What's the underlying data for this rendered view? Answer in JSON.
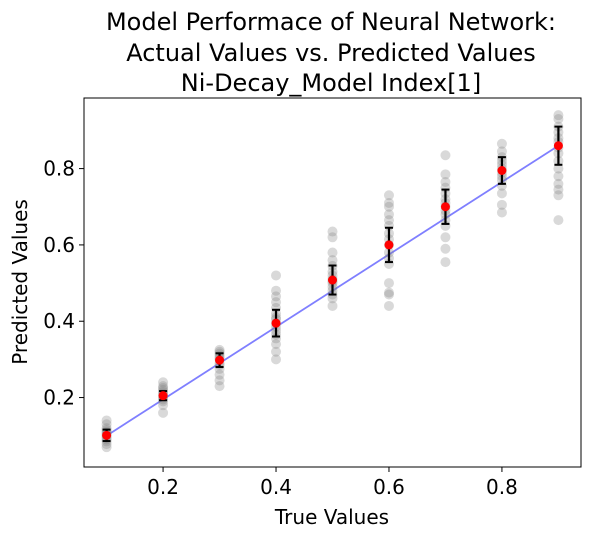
{
  "chart_data": {
    "type": "scatter",
    "title": [
      "Model Performace of Neural Network:",
      "Actual Values vs. Predicted Values",
      "Ni-Decay_Model Index[1]"
    ],
    "xlabel": "True Values",
    "ylabel": "Predicted Values",
    "xlim": [
      0.06,
      0.94
    ],
    "ylim": [
      0.018,
      0.985
    ],
    "xticks": [
      0.2,
      0.4,
      0.6,
      0.8
    ],
    "xtick_labels": [
      "0.2",
      "0.4",
      "0.6",
      "0.8"
    ],
    "yticks": [
      0.2,
      0.4,
      0.6,
      0.8
    ],
    "ytick_labels": [
      "0.2",
      "0.4",
      "0.6",
      "0.8"
    ],
    "grid": false,
    "legend": "none",
    "colors": {
      "points": "#808080",
      "mean": "#ff0000",
      "error_bar": "#000000",
      "fit_line": "#0000ff"
    },
    "fit_line": {
      "x": [
        0.1,
        0.9
      ],
      "y": [
        0.1,
        0.86
      ]
    },
    "groups": [
      {
        "x": 0.1,
        "mean": 0.101,
        "err": 0.015,
        "predicted": [
          0.07,
          0.078,
          0.085,
          0.09,
          0.095,
          0.1,
          0.103,
          0.107,
          0.11,
          0.115,
          0.12,
          0.13,
          0.14
        ]
      },
      {
        "x": 0.2,
        "mean": 0.205,
        "err": 0.012,
        "predicted": [
          0.16,
          0.18,
          0.19,
          0.195,
          0.2,
          0.205,
          0.21,
          0.215,
          0.22,
          0.225,
          0.23,
          0.24
        ]
      },
      {
        "x": 0.3,
        "mean": 0.298,
        "err": 0.018,
        "predicted": [
          0.23,
          0.245,
          0.26,
          0.275,
          0.285,
          0.29,
          0.3,
          0.305,
          0.31,
          0.315,
          0.32,
          0.325
        ]
      },
      {
        "x": 0.4,
        "mean": 0.395,
        "err": 0.035,
        "predicted": [
          0.3,
          0.32,
          0.34,
          0.355,
          0.365,
          0.375,
          0.385,
          0.395,
          0.405,
          0.41,
          0.42,
          0.435,
          0.45,
          0.465,
          0.48,
          0.52
        ]
      },
      {
        "x": 0.5,
        "mean": 0.508,
        "err": 0.038,
        "predicted": [
          0.44,
          0.46,
          0.47,
          0.48,
          0.49,
          0.5,
          0.505,
          0.51,
          0.52,
          0.53,
          0.545,
          0.56,
          0.58,
          0.62,
          0.635
        ]
      },
      {
        "x": 0.6,
        "mean": 0.6,
        "err": 0.045,
        "predicted": [
          0.44,
          0.47,
          0.475,
          0.5,
          0.55,
          0.565,
          0.58,
          0.6,
          0.615,
          0.63,
          0.65,
          0.665,
          0.68,
          0.7,
          0.71,
          0.73
        ]
      },
      {
        "x": 0.7,
        "mean": 0.7,
        "err": 0.045,
        "predicted": [
          0.555,
          0.59,
          0.62,
          0.65,
          0.665,
          0.68,
          0.69,
          0.7,
          0.71,
          0.72,
          0.735,
          0.75,
          0.765,
          0.785,
          0.835
        ]
      },
      {
        "x": 0.8,
        "mean": 0.795,
        "err": 0.035,
        "predicted": [
          0.685,
          0.705,
          0.735,
          0.755,
          0.77,
          0.78,
          0.79,
          0.8,
          0.81,
          0.82,
          0.83,
          0.845,
          0.865
        ]
      },
      {
        "x": 0.9,
        "mean": 0.86,
        "err": 0.05,
        "predicted": [
          0.665,
          0.73,
          0.745,
          0.76,
          0.78,
          0.8,
          0.82,
          0.84,
          0.855,
          0.87,
          0.88,
          0.895,
          0.91,
          0.93,
          0.94
        ]
      }
    ]
  }
}
